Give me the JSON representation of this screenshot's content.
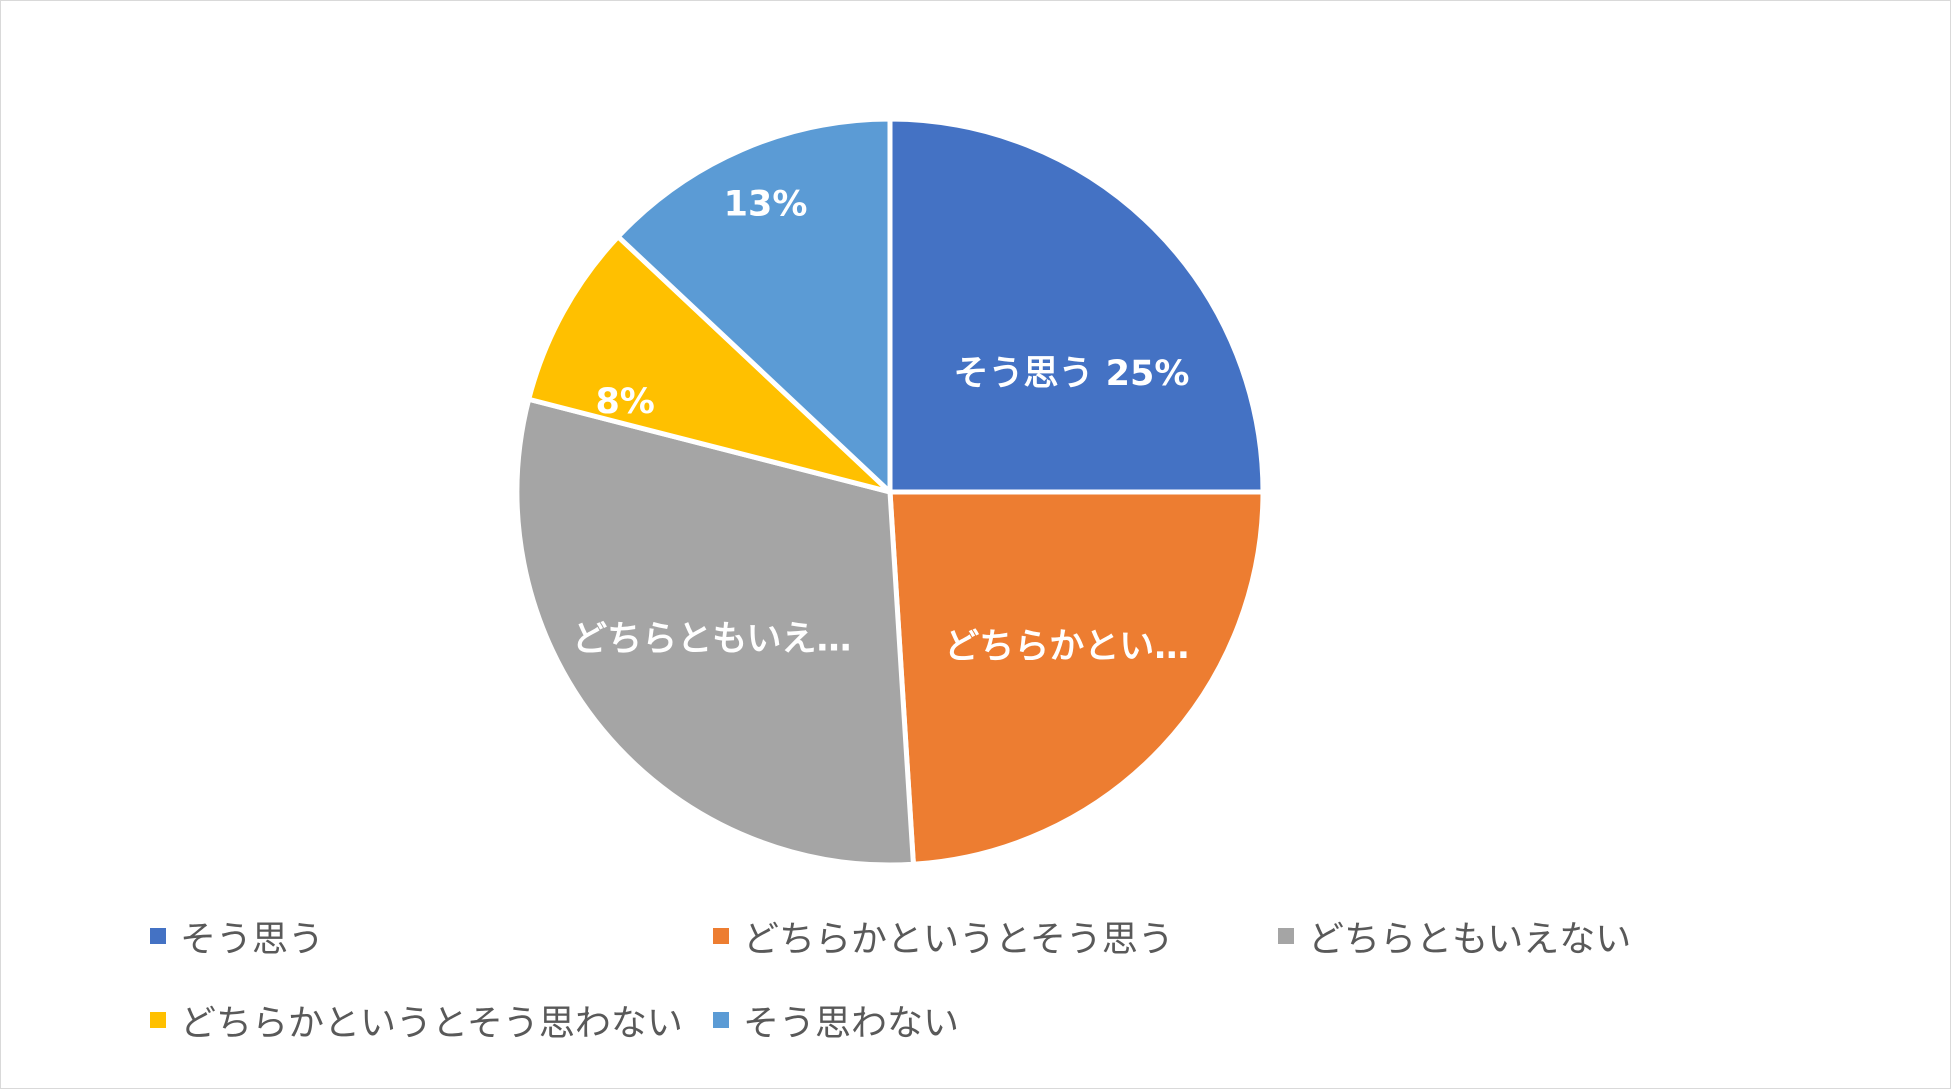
{
  "chart_data": {
    "type": "pie",
    "title": "",
    "categories": [
      "そう思う",
      "どちらかというとそう思う",
      "どちらともいえない",
      "どちらかというとそう思わない",
      "そう思わない"
    ],
    "values": [
      25,
      24,
      30,
      8,
      13
    ],
    "unit": "%",
    "colors": [
      "#4472C4",
      "#ED7D31",
      "#A5A5A5",
      "#FFC000",
      "#5B9BD5"
    ],
    "data_labels": [
      "そう思う 25%",
      "どちらかとい…",
      "どちらともいえ…",
      "8%",
      "13%"
    ],
    "start_angle": "12 o'clock",
    "direction": "clockwise",
    "legend": {
      "position": "bottom",
      "entries": [
        "そう思う",
        "どちらかというとそう思う",
        "どちらともいえない",
        "どちらかというとそう思わない",
        "そう思わない"
      ]
    }
  }
}
